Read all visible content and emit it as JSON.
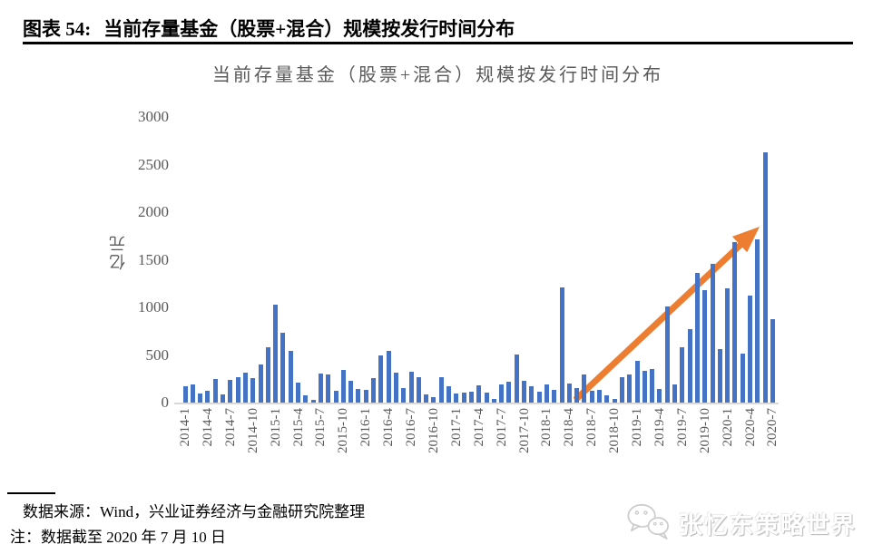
{
  "header": {
    "label": "图表 54:",
    "title": "当前存量基金（股票+混合）规模按发行时间分布"
  },
  "chart_data": {
    "type": "bar",
    "title": "当前存量基金（股票+混合）规模按发行时间分布",
    "xlabel": "",
    "ylabel": "亿元",
    "ylim": [
      0,
      3000
    ],
    "yticks": [
      0,
      500,
      1000,
      1500,
      2000,
      2500,
      3000
    ],
    "grid": false,
    "legend": "none",
    "bar_color": "#4472C4",
    "tick_label_every_n_months": 3,
    "x": [
      "2014-1",
      "2014-2",
      "2014-3",
      "2014-4",
      "2014-5",
      "2014-6",
      "2014-7",
      "2014-8",
      "2014-9",
      "2014-10",
      "2014-11",
      "2014-12",
      "2015-1",
      "2015-2",
      "2015-3",
      "2015-4",
      "2015-5",
      "2015-6",
      "2015-7",
      "2015-8",
      "2015-9",
      "2015-10",
      "2015-11",
      "2015-12",
      "2016-1",
      "2016-2",
      "2016-3",
      "2016-4",
      "2016-5",
      "2016-6",
      "2016-7",
      "2016-8",
      "2016-9",
      "2016-10",
      "2016-11",
      "2016-12",
      "2017-1",
      "2017-2",
      "2017-3",
      "2017-4",
      "2017-5",
      "2017-6",
      "2017-7",
      "2017-8",
      "2017-9",
      "2017-10",
      "2017-11",
      "2017-12",
      "2018-1",
      "2018-2",
      "2018-3",
      "2018-4",
      "2018-5",
      "2018-6",
      "2018-7",
      "2018-8",
      "2018-9",
      "2018-10",
      "2018-11",
      "2018-12",
      "2019-1",
      "2019-2",
      "2019-3",
      "2019-4",
      "2019-5",
      "2019-6",
      "2019-7",
      "2019-8",
      "2019-9",
      "2019-10",
      "2019-11",
      "2019-12",
      "2020-1",
      "2020-2",
      "2020-3",
      "2020-4",
      "2020-5",
      "2020-6",
      "2020-7"
    ],
    "values": [
      173,
      195,
      91,
      120,
      244,
      81,
      238,
      267,
      319,
      260,
      400,
      580,
      1030,
      730,
      540,
      206,
      73,
      32,
      301,
      293,
      124,
      342,
      231,
      140,
      130,
      260,
      498,
      547,
      310,
      156,
      325,
      270,
      85,
      59,
      270,
      173,
      91,
      107,
      117,
      178,
      104,
      39,
      195,
      218,
      505,
      225,
      169,
      110,
      186,
      137,
      1210,
      202,
      153,
      300,
      120,
      137,
      78,
      35,
      270,
      292,
      438,
      330,
      350,
      143,
      1010,
      195,
      585,
      775,
      1360,
      1185,
      1455,
      565,
      1200,
      1690,
      510,
      1120,
      1710,
      2630,
      880
    ],
    "annotation_arrow": {
      "description": "upward trend arrow",
      "color": "#ED7D31",
      "from_month": "2018-5",
      "to_month": "2020-6"
    }
  },
  "footer": {
    "source": "数据来源：Wind，兴业证券经济与金融研究院整理",
    "note": "注：数据截至 2020 年 7 月 10 日"
  },
  "watermark": {
    "icon": "wechat-icon",
    "text": "张忆东策略世界"
  }
}
